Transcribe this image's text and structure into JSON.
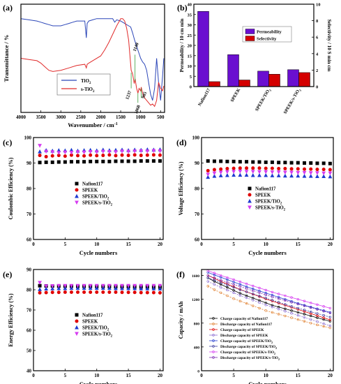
{
  "chart_data": [
    {
      "panel": "(a)",
      "type": "line",
      "xlabel": "Wavenumber / cm",
      "xlabel_sup": "-1",
      "ylabel": "Transmittance / %",
      "xlim": [
        4000,
        400
      ],
      "xticks": [
        4000,
        3500,
        3000,
        2500,
        2000,
        1500,
        1000,
        500
      ],
      "series": [
        {
          "name": "TiO",
          "sub": "2",
          "color": "#2b46b8",
          "x": [
            4000,
            3800,
            3600,
            3500,
            3400,
            3300,
            3200,
            3100,
            3000,
            2900,
            2800,
            2700,
            2600,
            2500,
            2400,
            2360,
            2340,
            2300,
            2200,
            2100,
            2000,
            1900,
            1800,
            1700,
            1650,
            1600,
            1500,
            1400,
            1300,
            1250,
            1200,
            1150,
            1100,
            1050,
            1000,
            950,
            900,
            850,
            800,
            750,
            700,
            650,
            600,
            550,
            500,
            450,
            420
          ],
          "y": [
            88,
            87,
            86,
            85,
            84,
            83,
            82,
            82,
            82,
            83,
            84,
            85,
            86,
            86,
            86,
            72,
            84,
            86,
            87,
            88,
            88,
            88,
            88,
            88,
            85,
            87,
            86,
            84,
            82,
            81,
            76,
            70,
            65,
            60,
            55,
            52,
            50,
            45,
            35,
            25,
            20,
            30,
            55,
            35,
            20,
            40,
            55
          ]
        },
        {
          "name": "s-TiO",
          "sub": "2",
          "color": "#e02a2a",
          "x": [
            4000,
            3800,
            3600,
            3500,
            3400,
            3300,
            3200,
            3000,
            2800,
            2600,
            2400,
            2360,
            2340,
            2300,
            2200,
            2000,
            1900,
            1800,
            1700,
            1600,
            1500,
            1450,
            1400,
            1350,
            1300,
            1270,
            1237,
            1200,
            1160,
            1140,
            1100,
            1068,
            1040,
            1000,
            985,
            950,
            900,
            850,
            800,
            750,
            700,
            650,
            600,
            550,
            500,
            450,
            420
          ],
          "y": [
            55,
            54,
            53,
            51,
            48,
            45,
            44,
            45,
            47,
            49,
            50,
            47,
            50,
            51,
            53,
            57,
            62,
            68,
            75,
            82,
            88,
            88,
            86,
            80,
            70,
            58,
            45,
            42,
            34,
            38,
            30,
            26,
            30,
            28,
            31,
            26,
            22,
            20,
            18,
            16,
            17,
            15,
            20,
            35,
            30,
            28,
            32
          ]
        }
      ],
      "annotations": [
        "1140",
        "1237",
        "1068",
        "985"
      ]
    },
    {
      "panel": "(b)",
      "type": "bar",
      "categories": [
        "Nafion117",
        "SPEEK",
        "SPEEK/TiO2",
        "SPEEK/s-TiO2"
      ],
      "ylabel": "Permeability / 10  cm  min",
      "y2label": "Selectivity / 10  S min cm",
      "ylim": [
        0,
        40
      ],
      "yticks": [
        0,
        5,
        10,
        15,
        20,
        25,
        30,
        35,
        40
      ],
      "y2lim": [
        0,
        10
      ],
      "y2ticks": [
        0,
        2,
        4,
        6,
        8,
        10
      ],
      "series": [
        {
          "name": "Permeability",
          "axis": "left",
          "color": "#6a0fd0",
          "values": [
            36.5,
            15.5,
            7.5,
            8.2
          ]
        },
        {
          "name": "Selectivity",
          "axis": "right",
          "color": "#d40000",
          "values": [
            0.6,
            0.8,
            1.5,
            1.7
          ]
        }
      ]
    },
    {
      "panel": "(c)",
      "type": "scatter",
      "xlabel": "Cycle numbers",
      "ylabel": "Coulombic Efficiency (%)",
      "xlim": [
        0,
        20.5
      ],
      "ylim": [
        60,
        100
      ],
      "yticks": [
        60,
        70,
        80,
        90,
        100
      ],
      "xticks": [
        0,
        5,
        10,
        15,
        20
      ],
      "x": [
        1,
        2,
        3,
        4,
        5,
        6,
        7,
        8,
        9,
        10,
        11,
        12,
        13,
        14,
        15,
        16,
        17,
        18,
        19,
        20
      ],
      "series": [
        {
          "name": "Nafion117",
          "marker": "square",
          "color": "#000000",
          "values": [
            90.2,
            90.3,
            90.3,
            90.4,
            90.4,
            90.5,
            90.5,
            90.5,
            90.6,
            90.6,
            90.6,
            90.6,
            90.7,
            90.7,
            90.7,
            90.7,
            90.8,
            90.8,
            90.8,
            90.8
          ]
        },
        {
          "name": "SPEEK",
          "marker": "circle",
          "color": "#e00000",
          "values": [
            93.0,
            92.5,
            92.8,
            93.0,
            92.7,
            93.1,
            92.9,
            92.8,
            93.1,
            92.9,
            93.0,
            93.2,
            92.9,
            93.1,
            93.0,
            93.2,
            93.0,
            93.1,
            93.2,
            93.1
          ]
        },
        {
          "name": "SPEEK/TiO",
          "sub": "2",
          "marker": "triangle-up",
          "color": "#1f3ad0",
          "values": [
            94.5,
            95.0,
            94.8,
            95.0,
            94.9,
            95.1,
            94.8,
            95.0,
            95.1,
            94.9,
            95.2,
            95.0,
            95.1,
            95.2,
            95.0,
            95.2,
            95.1,
            95.3,
            95.2,
            95.3
          ]
        },
        {
          "name": "SPEEK/s-TiO",
          "sub": "2",
          "marker": "triangle-down",
          "color": "#d63cf0",
          "values": [
            96.8,
            94.5,
            94.3,
            94.0,
            94.2,
            94.1,
            94.3,
            94.2,
            94.4,
            94.3,
            94.5,
            94.4,
            94.3,
            94.6,
            94.5,
            94.6,
            94.7,
            94.6,
            94.8,
            94.7
          ]
        }
      ]
    },
    {
      "panel": "(d)",
      "type": "scatter",
      "xlabel": "Cycle numbers",
      "ylabel": "Voltage Efficiency (%)",
      "xlim": [
        0,
        20.5
      ],
      "ylim": [
        60,
        100
      ],
      "yticks": [
        60,
        70,
        80,
        90,
        100
      ],
      "xticks": [
        0,
        5,
        10,
        15,
        20
      ],
      "x": [
        1,
        2,
        3,
        4,
        5,
        6,
        7,
        8,
        9,
        10,
        11,
        12,
        13,
        14,
        15,
        16,
        17,
        18,
        19,
        20
      ],
      "series": [
        {
          "name": "Nafion117",
          "marker": "square",
          "color": "#000000",
          "values": [
            90.8,
            90.7,
            90.7,
            90.6,
            90.6,
            90.5,
            90.5,
            90.4,
            90.4,
            90.3,
            90.3,
            90.2,
            90.2,
            90.1,
            90.1,
            90.0,
            90.0,
            89.9,
            89.9,
            89.8
          ]
        },
        {
          "name": "SPEEK",
          "marker": "circle",
          "color": "#e00000",
          "values": [
            87.0,
            87.4,
            87.6,
            87.8,
            87.9,
            88.0,
            88.0,
            88.0,
            88.0,
            87.9,
            87.9,
            87.8,
            87.8,
            87.7,
            87.7,
            87.6,
            87.6,
            87.5,
            87.5,
            87.4
          ]
        },
        {
          "name": "SPEEK/TiO",
          "sub": "2",
          "marker": "triangle-up",
          "color": "#1f3ad0",
          "values": [
            84.5,
            84.9,
            85.1,
            85.2,
            85.3,
            85.3,
            85.3,
            85.2,
            85.2,
            85.2,
            85.1,
            85.1,
            85.0,
            85.0,
            85.0,
            84.9,
            84.9,
            84.8,
            84.8,
            84.7
          ]
        },
        {
          "name": "SPEEK/s-TiO",
          "sub": "2",
          "marker": "triangle-down",
          "color": "#d63cf0",
          "values": [
            85.5,
            86.0,
            86.3,
            86.5,
            86.6,
            86.7,
            86.6,
            86.6,
            86.5,
            86.5,
            86.4,
            86.4,
            86.3,
            86.3,
            86.2,
            86.2,
            86.1,
            86.1,
            86.0,
            86.0
          ]
        }
      ]
    },
    {
      "panel": "(e)",
      "type": "scatter",
      "xlabel": "Cycle numbers",
      "ylabel": "Energy Efficiency (%)",
      "xlim": [
        0,
        20.5
      ],
      "ylim": [
        40,
        90
      ],
      "yticks": [
        40,
        50,
        60,
        70,
        80,
        90
      ],
      "xticks": [
        0,
        5,
        10,
        15,
        20
      ],
      "x": [
        1,
        2,
        3,
        4,
        5,
        6,
        7,
        8,
        9,
        10,
        11,
        12,
        13,
        14,
        15,
        16,
        17,
        18,
        19,
        20
      ],
      "series": [
        {
          "name": "Nafion117",
          "marker": "square",
          "color": "#000000",
          "values": [
            82.0,
            81.9,
            81.9,
            81.8,
            81.8,
            81.8,
            81.7,
            81.7,
            81.7,
            81.6,
            81.6,
            81.6,
            81.5,
            81.5,
            81.5,
            81.4,
            81.4,
            81.4,
            81.3,
            81.3
          ]
        },
        {
          "name": "SPEEK",
          "marker": "circle",
          "color": "#e00000",
          "values": [
            78.5,
            78.6,
            78.7,
            78.7,
            78.8,
            78.8,
            78.8,
            78.8,
            78.8,
            78.8,
            78.8,
            78.8,
            78.8,
            78.7,
            78.7,
            78.7,
            78.6,
            78.6,
            78.6,
            78.5
          ]
        },
        {
          "name": "SPEEK/TiO",
          "sub": "2",
          "marker": "triangle-up",
          "color": "#1f3ad0",
          "values": [
            80.2,
            80.5,
            80.6,
            80.7,
            80.7,
            80.8,
            80.8,
            80.8,
            80.8,
            80.8,
            80.8,
            80.8,
            80.7,
            80.7,
            80.7,
            80.7,
            80.6,
            80.6,
            80.6,
            80.5
          ]
        },
        {
          "name": "SPEEK/s-TiO",
          "sub": "2",
          "marker": "triangle-down",
          "color": "#d63cf0",
          "values": [
            83.5,
            81.8,
            81.9,
            82.0,
            82.0,
            82.0,
            82.0,
            82.0,
            82.0,
            82.0,
            82.0,
            82.0,
            82.0,
            82.0,
            82.0,
            82.0,
            82.0,
            82.0,
            82.0,
            82.0
          ]
        }
      ]
    },
    {
      "panel": "(f)",
      "type": "line",
      "xlabel": "Cycle numbers",
      "ylabel": "Capacity / mAh",
      "xlim": [
        0,
        20.5
      ],
      "ylim": [
        0,
        1700
      ],
      "yticks": [
        0,
        400,
        800,
        1200,
        1600
      ],
      "xticks": [
        0,
        5,
        10,
        15,
        20
      ],
      "x": [
        1,
        2,
        3,
        4,
        5,
        6,
        7,
        8,
        9,
        10,
        11,
        12,
        13,
        14,
        15,
        16,
        17,
        18,
        19,
        20
      ],
      "series": [
        {
          "name": "Charge capacity of Nafion117",
          "color": "#000000",
          "values": [
            1560,
            1500,
            1450,
            1400,
            1350,
            1300,
            1260,
            1220,
            1180,
            1140,
            1100,
            1070,
            1040,
            1010,
            980,
            950,
            920,
            890,
            860,
            830
          ]
        },
        {
          "name": "Discharge capacity of Nafion117",
          "color": "#e08030",
          "values": [
            1420,
            1360,
            1310,
            1260,
            1210,
            1170,
            1130,
            1090,
            1050,
            1010,
            980,
            950,
            920,
            890,
            860,
            830,
            800,
            770,
            745,
            720
          ]
        },
        {
          "name": "Charge capacity of SPEEK",
          "color": "#e00000",
          "values": [
            1600,
            1550,
            1500,
            1455,
            1410,
            1365,
            1325,
            1285,
            1245,
            1205,
            1170,
            1135,
            1100,
            1065,
            1030,
            995,
            960,
            925,
            890,
            855
          ]
        },
        {
          "name": "Discharge capacity of SPEEK",
          "color": "#8a6bd0",
          "values": [
            1500,
            1450,
            1400,
            1355,
            1310,
            1265,
            1225,
            1185,
            1145,
            1105,
            1070,
            1035,
            1000,
            965,
            930,
            895,
            860,
            825,
            790,
            755
          ]
        },
        {
          "name": "Charge capacity of SPEEK/TiO",
          "sub": "2",
          "color": "#1f3ad0",
          "values": [
            1650,
            1610,
            1570,
            1530,
            1490,
            1450,
            1410,
            1375,
            1340,
            1305,
            1270,
            1235,
            1200,
            1165,
            1130,
            1100,
            1070,
            1040,
            1010,
            980
          ]
        },
        {
          "name": "Discharge capacity of SPEEK/TiO",
          "sub": "2",
          "color": "#3a3aa0",
          "values": [
            1560,
            1520,
            1480,
            1440,
            1400,
            1360,
            1325,
            1290,
            1255,
            1220,
            1185,
            1150,
            1115,
            1080,
            1050,
            1020,
            990,
            960,
            930,
            900
          ]
        },
        {
          "name": "Charge capacity of SPEEK/s-TiO",
          "sub": "2",
          "color": "#d63cf0",
          "values": [
            1680,
            1640,
            1600,
            1565,
            1530,
            1495,
            1460,
            1425,
            1390,
            1355,
            1320,
            1290,
            1260,
            1230,
            1200,
            1170,
            1140,
            1110,
            1080,
            1050
          ]
        },
        {
          "name": "Discharge capacity of SPEEK/s-TiO",
          "sub": "2",
          "color": "#7a2ab0",
          "values": [
            1600,
            1560,
            1520,
            1485,
            1450,
            1415,
            1380,
            1345,
            1310,
            1275,
            1240,
            1210,
            1180,
            1150,
            1120,
            1090,
            1060,
            1030,
            1000,
            970
          ]
        }
      ]
    }
  ]
}
